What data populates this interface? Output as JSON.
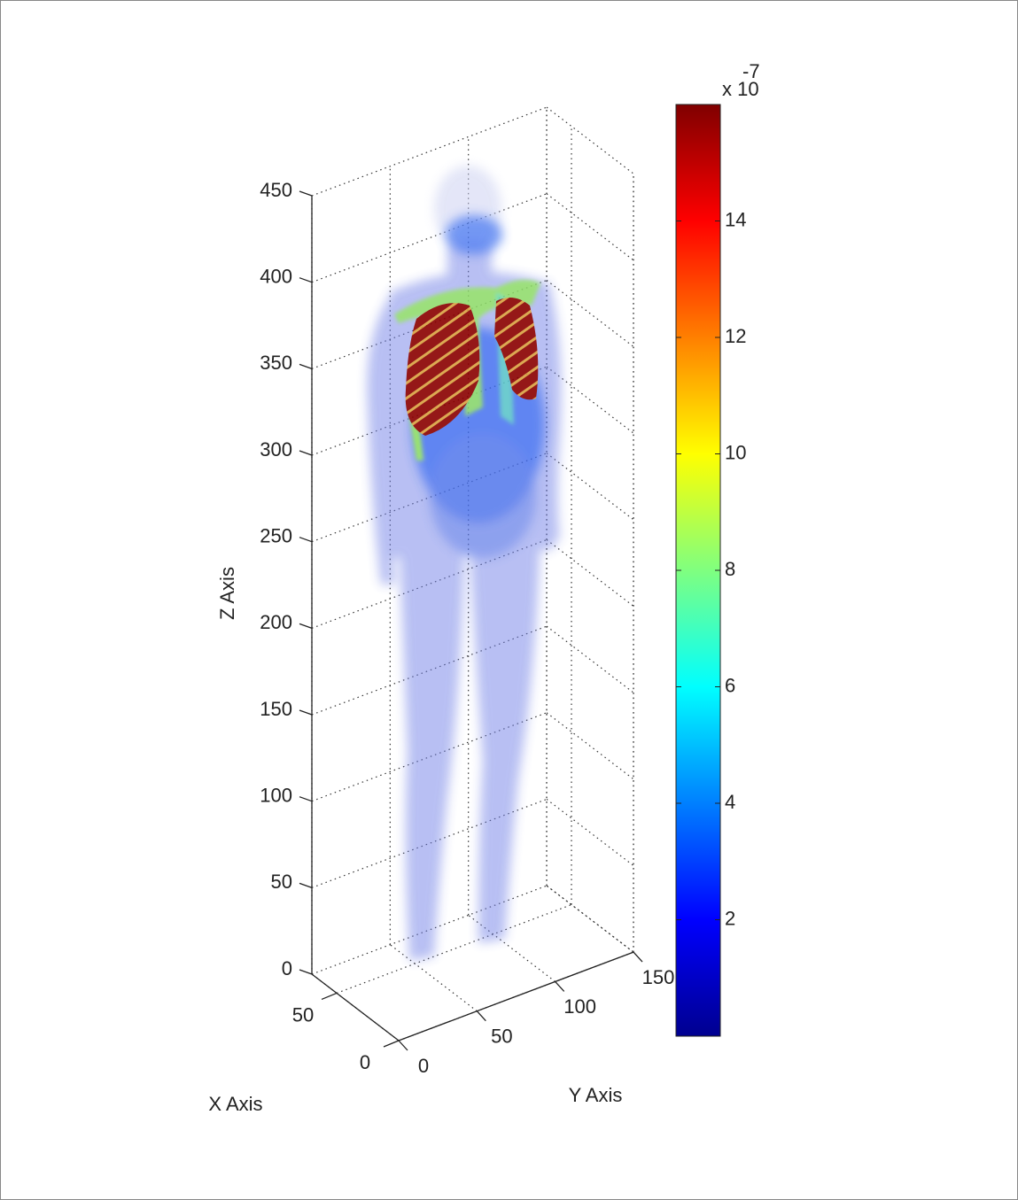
{
  "chart_data": {
    "type": "volume3d",
    "xlabel": "X Axis",
    "ylabel": "Y Axis",
    "zlabel": "Z Axis",
    "xlim": [
      0,
      70
    ],
    "xticks": [
      0,
      50
    ],
    "ylim": [
      0,
      150
    ],
    "yticks": [
      0,
      50,
      100,
      150
    ],
    "zlim": [
      0,
      450
    ],
    "zticks": [
      0,
      50,
      100,
      150,
      200,
      250,
      300,
      350,
      400,
      450
    ],
    "grid": true,
    "colorbar": {
      "colormap": "jet",
      "clim": [
        0,
        16
      ],
      "ticks": [
        2,
        4,
        6,
        8,
        10,
        12,
        14
      ],
      "multiplier_base": "x 10",
      "multiplier_exponent": "-7"
    }
  }
}
